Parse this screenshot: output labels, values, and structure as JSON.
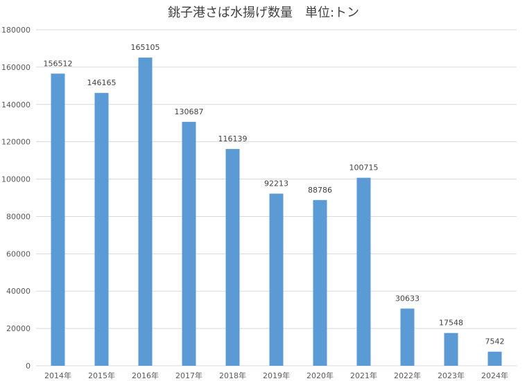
{
  "chart_data": {
    "type": "bar",
    "title": "銚子港さば水揚げ数量　単位:トン",
    "categories": [
      "2014年",
      "2015年",
      "2016年",
      "2017年",
      "2018年",
      "2019年",
      "2020年",
      "2021年",
      "2022年",
      "2023年",
      "2024年"
    ],
    "values": [
      156512,
      146165,
      165105,
      130687,
      116139,
      92213,
      88786,
      100715,
      30633,
      17548,
      7542
    ],
    "data_labels": [
      "156512",
      "146165",
      "165105",
      "130687",
      "116139",
      "92213",
      "88786",
      "100715",
      "30633",
      "17548",
      "7542"
    ],
    "y_ticks": [
      "0",
      "20000",
      "40000",
      "60000",
      "80000",
      "100000",
      "120000",
      "140000",
      "160000",
      "180000"
    ],
    "ylim": [
      0,
      180000
    ],
    "grid": true,
    "legend": "none",
    "bar_color": "#5B9BD5",
    "grid_color": "#D9D9D9"
  }
}
